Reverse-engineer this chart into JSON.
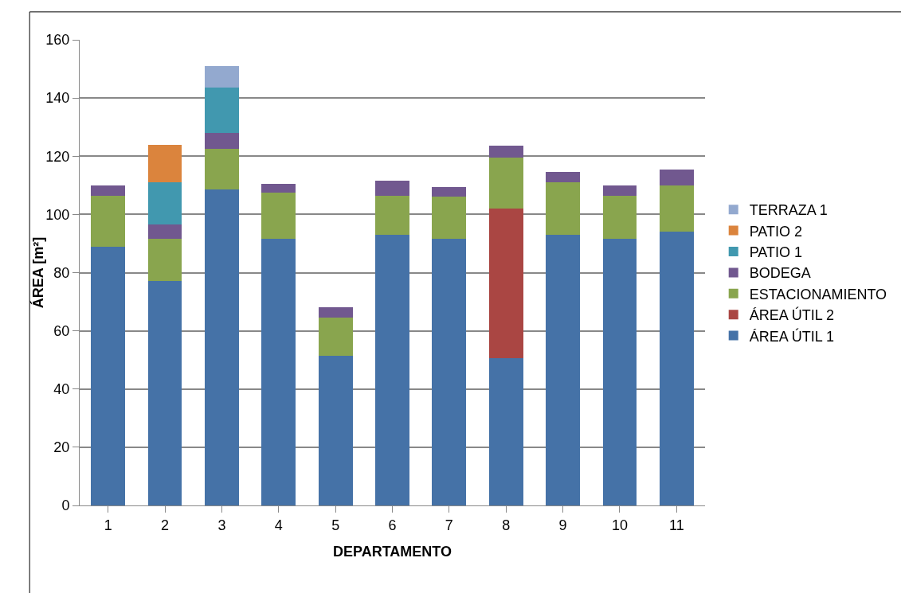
{
  "chart_data": {
    "type": "bar",
    "stacked": true,
    "xlabel": "DEPARTAMENTO",
    "ylabel": "ÁREA [m²]",
    "categories": [
      "1",
      "2",
      "3",
      "4",
      "5",
      "6",
      "7",
      "8",
      "9",
      "10",
      "11"
    ],
    "ylim": [
      0,
      160
    ],
    "yticks": [
      0,
      20,
      40,
      60,
      80,
      100,
      120,
      140,
      160
    ],
    "grid": "y",
    "legend": "right",
    "series": [
      {
        "name": "ÁREA ÚTIL 1",
        "color": "#4572a7",
        "values": [
          89,
          77,
          108.5,
          91.5,
          51.5,
          93,
          91.5,
          50.5,
          93,
          91.5,
          94
        ]
      },
      {
        "name": "ÁREA ÚTIL 2",
        "color": "#aa4643",
        "values": [
          null,
          null,
          null,
          null,
          null,
          null,
          null,
          51.5,
          null,
          null,
          null
        ]
      },
      {
        "name": "ESTACIONAMIENTO",
        "color": "#89a54e",
        "values": [
          17.5,
          14.5,
          14,
          16,
          13,
          13.5,
          14.5,
          17.5,
          18,
          15,
          16
        ]
      },
      {
        "name": "BODEGA",
        "color": "#71588f",
        "values": [
          3.5,
          5,
          5.5,
          3,
          3.5,
          5,
          3.5,
          4,
          3.5,
          3.5,
          5.5
        ]
      },
      {
        "name": "PATIO 1",
        "color": "#4198af",
        "values": [
          null,
          14.5,
          15.5,
          null,
          null,
          null,
          null,
          null,
          null,
          null,
          null
        ]
      },
      {
        "name": "PATIO 2",
        "color": "#db843d",
        "values": [
          null,
          13,
          null,
          null,
          null,
          null,
          null,
          null,
          null,
          null,
          null
        ]
      },
      {
        "name": "TERRAZA 1",
        "color": "#93a9cf",
        "values": [
          null,
          null,
          7.5,
          null,
          null,
          null,
          null,
          null,
          null,
          null,
          null
        ]
      }
    ]
  }
}
